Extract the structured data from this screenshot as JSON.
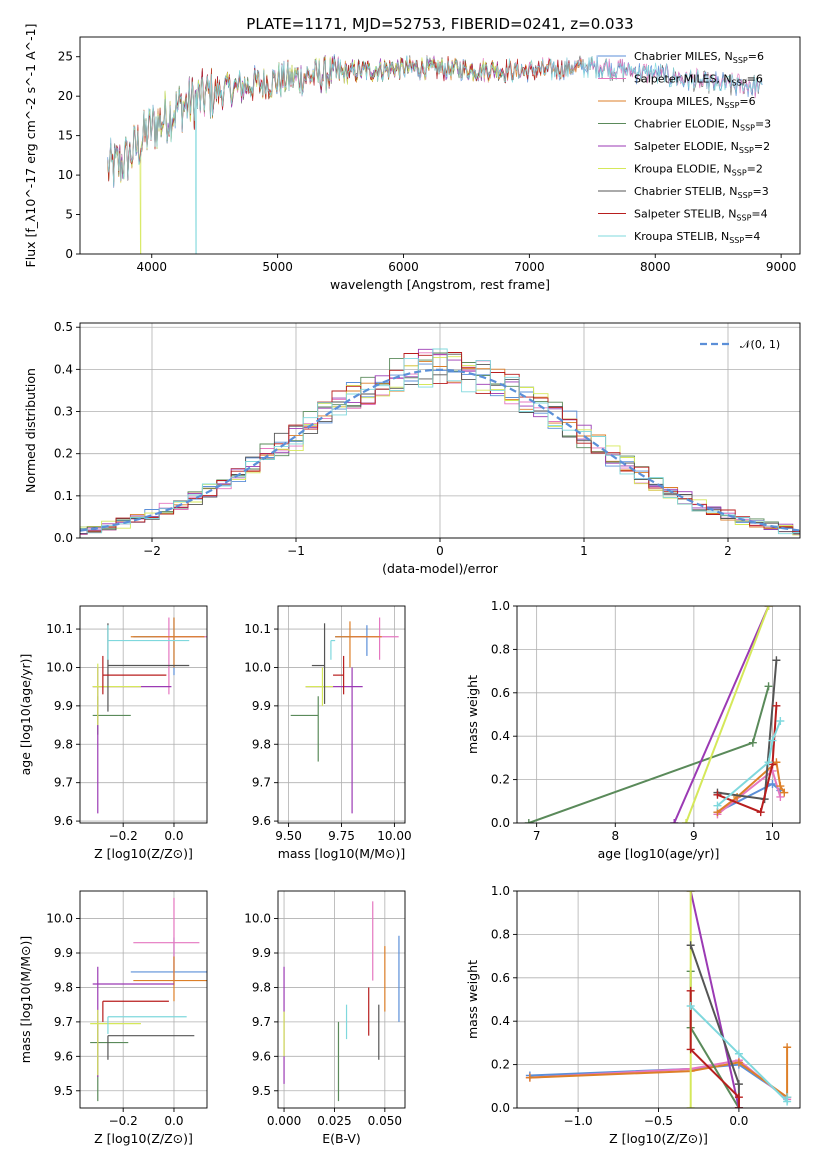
{
  "figure_title": "PLATE=1171, MJD=52753, FIBERID=0241, z=0.033",
  "series_colors": [
    "#5b8fd8",
    "#e577c0",
    "#dd7f28",
    "#5a8a5a",
    "#9b3ab4",
    "#d5e85a",
    "#555555",
    "#b81e1e",
    "#7fd8dd"
  ],
  "chart_data": [
    {
      "type": "line",
      "id": "spectrum",
      "xlabel": "wavelength [Angstrom, rest frame]",
      "ylabel": "Flux [f_λ10^-17 erg cm^-2 s^-1 A^-1]",
      "xlim": [
        3430,
        9150
      ],
      "ylim": [
        0,
        27.5
      ],
      "xticks": [
        4000,
        5000,
        6000,
        7000,
        8000,
        9000
      ],
      "yticks": [
        0,
        5,
        10,
        15,
        20,
        25
      ],
      "grid": false,
      "legend_position": "top-right",
      "legend": [
        {
          "name": "Chabrier MILES, N_SSP=6",
          "text": "Chabrier MILES, N",
          "sub": "SSP",
          "val": "=6"
        },
        {
          "name": "Salpeter MILES, N_SSP=6",
          "text": "Salpeter MILES, N",
          "sub": "SSP",
          "val": "=6"
        },
        {
          "name": "Kroupa MILES, N_SSP=6",
          "text": "Kroupa MILES, N",
          "sub": "SSP",
          "val": "=6"
        },
        {
          "name": "Chabrier ELODIE, N_SSP=3",
          "text": "Chabrier ELODIE, N",
          "sub": "SSP",
          "val": "=3"
        },
        {
          "name": "Salpeter ELODIE, N_SSP=2",
          "text": "Salpeter ELODIE, N",
          "sub": "SSP",
          "val": "=2"
        },
        {
          "name": "Kroupa ELODIE, N_SSP=2",
          "text": "Kroupa ELODIE, N",
          "sub": "SSP",
          "val": "=2"
        },
        {
          "name": "Chabrier STELIB, N_SSP=3",
          "text": "Chabrier STELIB, N",
          "sub": "SSP",
          "val": "=3"
        },
        {
          "name": "Salpeter STELIB, N_SSP=4",
          "text": "Salpeter STELIB, N",
          "sub": "SSP",
          "val": "=4"
        },
        {
          "name": "Kroupa STELIB, N_SSP=4",
          "text": "Kroupa STELIB, N",
          "sub": "SSP",
          "val": "=4"
        }
      ],
      "continuum": {
        "x": [
          3700,
          3800,
          3900,
          4000,
          4200,
          4500,
          5000,
          5500,
          6000,
          6500,
          7000,
          7500,
          8000,
          8500,
          8850
        ],
        "y": [
          11,
          12,
          14,
          16,
          18.5,
          20.5,
          22,
          23,
          23.6,
          23.4,
          23.2,
          23.8,
          22.8,
          21.5,
          21.2
        ]
      },
      "series_ranges": [
        [
          3650,
          8850
        ],
        [
          3650,
          8850
        ],
        [
          3650,
          7420
        ],
        [
          3650,
          6800
        ],
        [
          3650,
          6800
        ],
        [
          3650,
          6800
        ],
        [
          3650,
          8850
        ],
        [
          3650,
          7420
        ],
        [
          3650,
          8850
        ]
      ],
      "drops": [
        {
          "x": 3910,
          "series": [
            5
          ]
        },
        {
          "x": 4350,
          "series": [
            8
          ]
        },
        {
          "x": 6800,
          "series": [
            3,
            4,
            5
          ]
        },
        {
          "x": 7420,
          "series": [
            2,
            7
          ]
        }
      ]
    },
    {
      "type": "line",
      "id": "residual-histogram",
      "xlabel": "(data-model)/error",
      "ylabel": "Normed distribution",
      "xlim": [
        -2.5,
        2.5
      ],
      "ylim": [
        0,
        0.51
      ],
      "xticks": [
        -2,
        -1,
        0,
        1,
        2
      ],
      "yticks": [
        0.0,
        0.1,
        0.2,
        0.3,
        0.4,
        0.5
      ],
      "grid": true,
      "legend_position": "top-right",
      "legend": [
        {
          "name": "𝒩(0, 1)"
        }
      ],
      "bin_width": 0.1,
      "gaussian": {
        "mu": 0,
        "sigma": 1
      }
    },
    {
      "type": "scatter",
      "id": "age-vs-metallicity",
      "xlabel": "Z [log10(Z/Z⊙)]",
      "ylabel": "age  [log10(age/yr)]",
      "xlim": [
        -0.37,
        0.13
      ],
      "ylim": [
        9.595,
        10.16
      ],
      "xticks": [
        -0.2,
        0.0
      ],
      "yticks": [
        9.6,
        9.7,
        9.8,
        9.9,
        10.0,
        10.1
      ],
      "grid": true,
      "crosses": [
        {
          "s": 0,
          "x": 0.0,
          "xerr": [
            0.16,
            0.12
          ],
          "y": 10.08,
          "yerr": [
            0.1,
            0.05
          ]
        },
        {
          "s": 1,
          "x": -0.02,
          "xerr": [
            0.05,
            0.15
          ],
          "y": 10.08,
          "yerr": [
            0.15,
            0.05
          ]
        },
        {
          "s": 2,
          "x": 0.0,
          "xerr": [
            0.17,
            0.12
          ],
          "y": 10.08,
          "yerr": [
            0.08,
            0.05
          ]
        },
        {
          "s": 3,
          "x": -0.3,
          "xerr": [
            0.02,
            0.13
          ],
          "y": 9.875,
          "yerr": [
            0.05,
            0.05
          ]
        },
        {
          "s": 4,
          "x": -0.3,
          "xerr": [
            0.02,
            0.29
          ],
          "y": 9.95,
          "yerr": [
            0.33,
            0.05
          ]
        },
        {
          "s": 5,
          "x": -0.3,
          "xerr": [
            0.02,
            0.17
          ],
          "y": 9.95,
          "yerr": [
            0.1,
            0.06
          ]
        },
        {
          "s": 6,
          "x": -0.26,
          "xerr": [
            0.0,
            0.32
          ],
          "y": 10.005,
          "yerr": [
            0.12,
            0.11
          ]
        },
        {
          "s": 7,
          "x": -0.28,
          "xerr": [
            0.0,
            0.25
          ],
          "y": 9.98,
          "yerr": [
            0.05,
            0.05
          ]
        },
        {
          "s": 8,
          "x": -0.26,
          "xerr": [
            0.0,
            0.32
          ],
          "y": 10.07,
          "yerr": [
            0.05,
            0.04
          ]
        }
      ]
    },
    {
      "type": "scatter",
      "id": "age-vs-mass",
      "xlabel": "mass [log10(M/M⊙)]",
      "ylabel": "",
      "xlim": [
        9.45,
        10.05
      ],
      "ylim": [
        9.595,
        10.16
      ],
      "xticks": [
        9.5,
        9.75,
        10.0
      ],
      "yticks": [
        9.6,
        9.7,
        9.8,
        9.9,
        10.0,
        10.1
      ],
      "grid": true,
      "crosses": [
        {
          "s": 0,
          "x": 9.87,
          "xerr": [
            0.15,
            0.0
          ],
          "y": 10.08,
          "yerr": [
            0.05,
            0.03
          ]
        },
        {
          "s": 1,
          "x": 9.93,
          "xerr": [
            0.13,
            0.09
          ],
          "y": 10.08,
          "yerr": [
            0.06,
            0.05
          ]
        },
        {
          "s": 2,
          "x": 9.79,
          "xerr": [
            0.07,
            0.15
          ],
          "y": 10.08,
          "yerr": [
            0.08,
            0.04
          ]
        },
        {
          "s": 3,
          "x": 9.64,
          "xerr": [
            0.13,
            0.0
          ],
          "y": 9.875,
          "yerr": [
            0.12,
            0.05
          ]
        },
        {
          "s": 4,
          "x": 9.8,
          "xerr": [
            0.22,
            0.05
          ],
          "y": 9.95,
          "yerr": [
            0.33,
            0.05
          ]
        },
        {
          "s": 5,
          "x": 9.66,
          "xerr": [
            0.08,
            0.05
          ],
          "y": 9.95,
          "yerr": [
            0.05,
            0.05
          ]
        },
        {
          "s": 6,
          "x": 9.67,
          "xerr": [
            0.06,
            0.0
          ],
          "y": 10.005,
          "yerr": [
            0.1,
            0.11
          ]
        },
        {
          "s": 7,
          "x": 9.76,
          "xerr": [
            0.05,
            0.0
          ],
          "y": 9.98,
          "yerr": [
            0.05,
            0.05
          ]
        },
        {
          "s": 8,
          "x": 9.7,
          "xerr": [
            0.0,
            0.02
          ],
          "y": 10.07,
          "yerr": [
            0.05,
            0.0
          ]
        }
      ]
    },
    {
      "type": "line",
      "id": "mass-weight-vs-age",
      "xlabel": "age  [log10(age/yr)]",
      "ylabel": "mass weight",
      "xlim": [
        6.75,
        10.35
      ],
      "ylim": [
        0,
        1.0
      ],
      "xticks": [
        7,
        8,
        9,
        10
      ],
      "yticks": [
        0.0,
        0.2,
        0.4,
        0.6,
        0.8,
        1.0
      ],
      "grid": true,
      "series": [
        {
          "s": 0,
          "x": [
            9.3,
            10.0,
            10.1
          ],
          "y": [
            0.05,
            0.18,
            0.15
          ]
        },
        {
          "s": 1,
          "x": [
            9.3,
            10.0,
            10.1
          ],
          "y": [
            0.04,
            0.24,
            0.12
          ]
        },
        {
          "s": 2,
          "x": [
            9.3,
            9.55,
            10.05,
            10.1,
            10.15
          ],
          "y": [
            0.05,
            0.12,
            0.28,
            0.17,
            0.14
          ]
        },
        {
          "s": 3,
          "x": [
            6.9,
            9.75,
            9.95
          ],
          "y": [
            0.0,
            0.37,
            0.63
          ]
        },
        {
          "s": 4,
          "x": [
            8.75,
            9.95
          ],
          "y": [
            0.0,
            1.0
          ]
        },
        {
          "s": 5,
          "x": [
            8.9,
            9.95
          ],
          "y": [
            0.0,
            1.0
          ]
        },
        {
          "s": 6,
          "x": [
            9.3,
            9.9,
            10.05
          ],
          "y": [
            0.14,
            0.11,
            0.75
          ]
        },
        {
          "s": 7,
          "x": [
            9.3,
            9.85,
            10.0,
            10.05
          ],
          "y": [
            0.13,
            0.05,
            0.27,
            0.54
          ]
        },
        {
          "s": 8,
          "x": [
            9.3,
            9.95,
            10.0,
            10.1
          ],
          "y": [
            0.08,
            0.28,
            0.38,
            0.47
          ]
        }
      ]
    },
    {
      "type": "scatter",
      "id": "mass-vs-metallicity",
      "xlabel": "Z [log10(Z/Z⊙)]",
      "ylabel": "mass [log10(M/M⊙)]",
      "xlim": [
        -0.37,
        0.13
      ],
      "ylim": [
        9.45,
        10.08
      ],
      "xticks": [
        -0.2,
        0.0
      ],
      "yticks": [
        9.5,
        9.6,
        9.7,
        9.8,
        9.9,
        10.0
      ],
      "grid": true,
      "crosses": [
        {
          "s": 0,
          "x": 0.0,
          "xerr": [
            0.17,
            0.13
          ],
          "y": 9.845,
          "yerr": [
            0.04,
            0.1
          ]
        },
        {
          "s": 1,
          "x": 0.0,
          "xerr": [
            0.16,
            0.1
          ],
          "y": 9.93,
          "yerr": [
            0.12,
            0.13
          ]
        },
        {
          "s": 2,
          "x": 0.0,
          "xerr": [
            0.16,
            0.13
          ],
          "y": 9.82,
          "yerr": [
            0.06,
            0.07
          ]
        },
        {
          "s": 3,
          "x": -0.3,
          "xerr": [
            0.03,
            0.12
          ],
          "y": 9.64,
          "yerr": [
            0.17,
            0.06
          ]
        },
        {
          "s": 4,
          "x": -0.3,
          "xerr": [
            0.02,
            0.3
          ],
          "y": 9.81,
          "yerr": [
            0.27,
            0.05
          ]
        },
        {
          "s": 5,
          "x": -0.3,
          "xerr": [
            0.03,
            0.17
          ],
          "y": 9.695,
          "yerr": [
            0.15,
            0.04
          ]
        },
        {
          "s": 6,
          "x": -0.26,
          "xerr": [
            0.0,
            0.34
          ],
          "y": 9.66,
          "yerr": [
            0.07,
            0.0
          ]
        },
        {
          "s": 7,
          "x": -0.28,
          "xerr": [
            0.0,
            0.26
          ],
          "y": 9.76,
          "yerr": [
            0.06,
            0.0
          ]
        },
        {
          "s": 8,
          "x": -0.26,
          "xerr": [
            0.0,
            0.31
          ],
          "y": 9.715,
          "yerr": [
            0.05,
            0.0
          ]
        }
      ]
    },
    {
      "type": "scatter",
      "id": "mass-vs-ebv",
      "xlabel": "E(B-V)",
      "ylabel": "",
      "xlim": [
        -0.003,
        0.06
      ],
      "ylim": [
        9.45,
        10.08
      ],
      "xticks": [
        0.0,
        0.025,
        0.05
      ],
      "yticks": [
        9.5,
        9.6,
        9.7,
        9.8,
        9.9,
        10.0
      ],
      "grid": true,
      "crosses": [
        {
          "s": 0,
          "x": 0.057,
          "yerr": [
            9.7,
            9.95
          ]
        },
        {
          "s": 1,
          "x": 0.044,
          "yerr": [
            9.82,
            10.05
          ]
        },
        {
          "s": 2,
          "x": 0.05,
          "yerr": [
            9.73,
            9.92
          ]
        },
        {
          "s": 3,
          "x": 0.027,
          "yerr": [
            9.47,
            9.7
          ]
        },
        {
          "s": 4,
          "x": 0.0,
          "yerr": [
            9.52,
            9.86
          ]
        },
        {
          "s": 5,
          "x": 0.0,
          "yerr": [
            9.6,
            9.73
          ]
        },
        {
          "s": 6,
          "x": 0.047,
          "yerr": [
            9.59,
            9.75
          ]
        },
        {
          "s": 7,
          "x": 0.042,
          "yerr": [
            9.66,
            9.8
          ]
        },
        {
          "s": 8,
          "x": 0.031,
          "yerr": [
            9.65,
            9.75
          ]
        }
      ]
    },
    {
      "type": "line",
      "id": "mass-weight-vs-metallicity",
      "xlabel": "Z [log10(Z/Z⊙)]",
      "ylabel": "mass weight",
      "xlim": [
        -1.38,
        0.38
      ],
      "ylim": [
        0,
        1.0
      ],
      "xticks": [
        -1.0,
        -0.5,
        0.0
      ],
      "yticks": [
        0.0,
        0.2,
        0.4,
        0.6,
        0.8,
        1.0
      ],
      "grid": true,
      "series": [
        {
          "s": 0,
          "x": [
            -1.3,
            -0.3,
            0.0,
            0.3
          ],
          "y": [
            0.15,
            0.18,
            0.2,
            0.05
          ]
        },
        {
          "s": 1,
          "x": [
            -1.3,
            -0.3,
            0.0,
            0.3
          ],
          "y": [
            0.14,
            0.18,
            0.22,
            0.04
          ]
        },
        {
          "s": 2,
          "x": [
            -1.3,
            -0.3,
            0.0,
            0.3,
            0.3
          ],
          "y": [
            0.14,
            0.17,
            0.21,
            0.05,
            0.28
          ]
        },
        {
          "s": 3,
          "x": [
            -0.3,
            -0.3,
            0.0
          ],
          "y": [
            0.63,
            0.37,
            0.0
          ]
        },
        {
          "s": 4,
          "x": [
            -0.3,
            0.0
          ],
          "y": [
            1.0,
            0.0
          ]
        },
        {
          "s": 5,
          "x": [
            -0.3,
            -0.3
          ],
          "y": [
            1.0,
            0.0
          ]
        },
        {
          "s": 6,
          "x": [
            -0.3,
            0.0,
            0.0
          ],
          "y": [
            0.75,
            0.11,
            0.0
          ]
        },
        {
          "s": 7,
          "x": [
            -0.3,
            -0.3,
            0.0,
            0.0
          ],
          "y": [
            0.54,
            0.27,
            0.05,
            0.0
          ]
        },
        {
          "s": 8,
          "x": [
            -0.3,
            0.0,
            0.3,
            0.3
          ],
          "y": [
            0.47,
            0.25,
            0.03,
            0.05
          ]
        }
      ]
    }
  ]
}
